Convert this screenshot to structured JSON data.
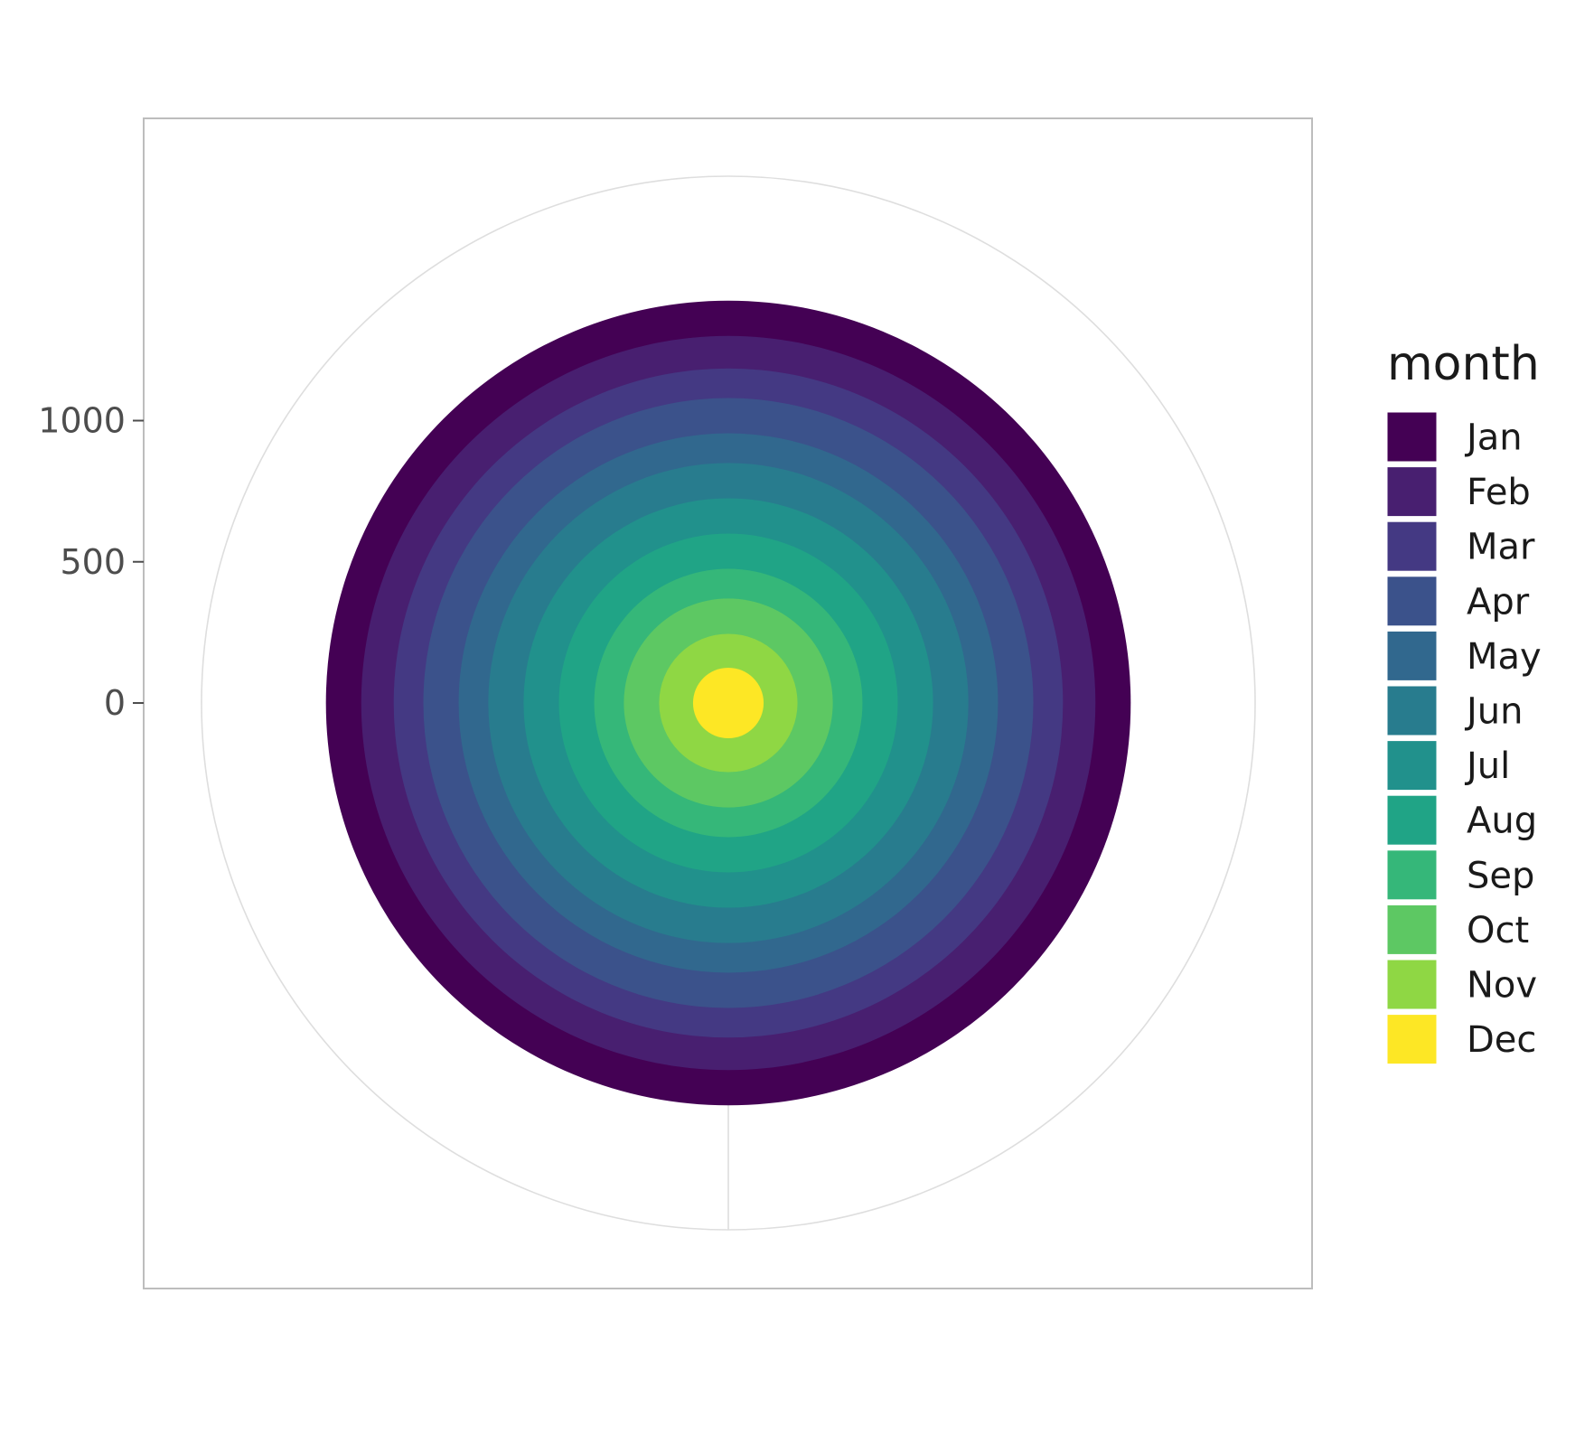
{
  "chart_data": {
    "type": "pie",
    "coord": "polar",
    "description_kind": "stacked bar in polar coordinates (concentric rings)",
    "categories": [
      "Jan",
      "Feb",
      "Mar",
      "Apr",
      "May",
      "Jun",
      "Jul",
      "Aug",
      "Sep",
      "Oct",
      "Nov",
      "Dec"
    ],
    "values": [
      125,
      115,
      105,
      125,
      105,
      125,
      125,
      125,
      105,
      125,
      120,
      125
    ],
    "colors": [
      "#440154",
      "#481F70",
      "#443983",
      "#3B528B",
      "#31688E",
      "#287C8E",
      "#21918C",
      "#20A486",
      "#35B779",
      "#5DC863",
      "#8FD744",
      "#FDE725"
    ],
    "legend": {
      "title": "month",
      "position": "right"
    },
    "y_ticks": [
      0,
      500,
      1000
    ],
    "y_tick_labels": [
      "0",
      "500",
      "1000"
    ],
    "ylim": [
      0,
      1650
    ],
    "grid": true,
    "title": "",
    "xlabel": "",
    "ylabel": ""
  }
}
